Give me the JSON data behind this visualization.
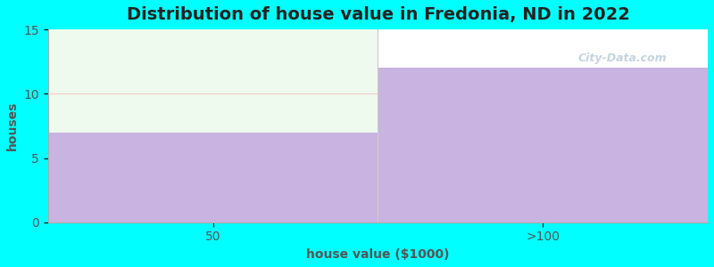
{
  "title": "Distribution of house value in Fredonia, ND in 2022",
  "xlabel": "house value ($1000)",
  "ylabel": "houses",
  "categories": [
    "50",
    ">100"
  ],
  "values": [
    7,
    12
  ],
  "bar_color": "#c9b3e0",
  "bg_color": "#00ffff",
  "plot_bg_color": "#ffffff",
  "green_bg_color": "#edfaed",
  "ylim": [
    0,
    15
  ],
  "yticks": [
    0,
    5,
    10,
    15
  ],
  "title_fontsize": 14,
  "label_fontsize": 10,
  "tick_fontsize": 10,
  "watermark_text": "City-Data.com",
  "watermark_color": "#a0b8cc",
  "watermark_alpha": 0.6,
  "grid_color": "#f5c0c0",
  "grid_alpha": 0.8
}
